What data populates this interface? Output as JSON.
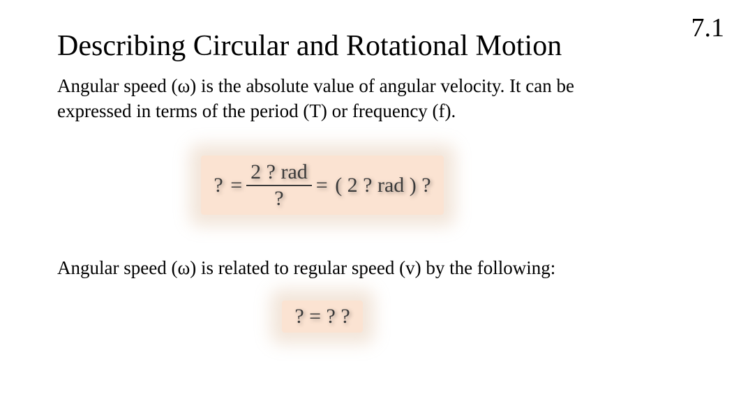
{
  "section_number": "7.1",
  "title": "Describing Circular and Rotational Motion",
  "para1": "Angular speed (ω) is the absolute value of angular velocity. It can be expressed in terms of the period (T) or frequency (f).",
  "para2": "Angular speed (ω) is related to regular  speed (v) by the following:",
  "formula1": {
    "lhs": "?",
    "eq1": "=",
    "frac_num": "2 ? rad",
    "frac_den": "?",
    "eq2": "=",
    "rhs": "( 2 ? rad ) ?",
    "background_color": "#fbe3d2",
    "text_color": "#3a3a3a"
  },
  "formula2": {
    "text": "? = ? ?",
    "background_color": "#fbe3d2",
    "text_color": "#3a3a3a"
  },
  "colors": {
    "page_background": "#ffffff",
    "text": "#000000"
  },
  "fonts": {
    "family": "Times New Roman / Liberation Serif",
    "title_size_pt": 32,
    "body_size_pt": 20,
    "formula_size_pt": 22,
    "section_number_size_pt": 28
  }
}
